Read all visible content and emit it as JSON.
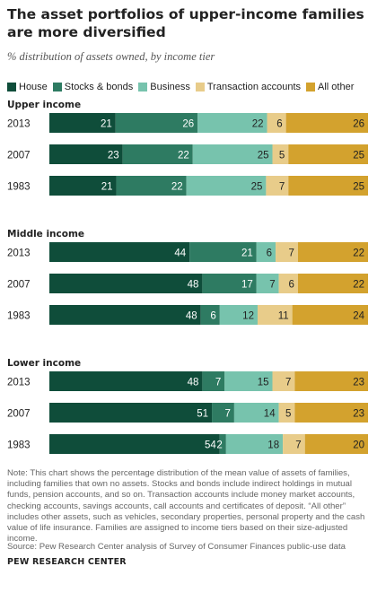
{
  "title": "The asset portfolios of upper-income families are more diversified",
  "subtitle": "% distribution of assets owned, by income tier",
  "chart_data": {
    "type": "bar",
    "orientation": "horizontal",
    "stacked": true,
    "title": "The asset portfolios of upper-income families are more diversified",
    "subtitle": "% distribution of assets owned, by income tier",
    "series": [
      {
        "name": "House",
        "color": "#0f4d3a"
      },
      {
        "name": "Stocks & bonds",
        "color": "#2e7b62"
      },
      {
        "name": "Business",
        "color": "#77c3ad"
      },
      {
        "name": "Transaction accounts",
        "color": "#e8cc8a"
      },
      {
        "name": "All other",
        "color": "#d3a22e"
      }
    ],
    "groups": [
      {
        "name": "Upper income",
        "rows": [
          {
            "year": "2013",
            "values": [
              21,
              26,
              22,
              6,
              26
            ]
          },
          {
            "year": "2007",
            "values": [
              23,
              22,
              25,
              5,
              25
            ]
          },
          {
            "year": "1983",
            "values": [
              21,
              22,
              25,
              7,
              25
            ]
          }
        ]
      },
      {
        "name": "Middle income",
        "rows": [
          {
            "year": "2013",
            "values": [
              44,
              21,
              6,
              7,
              22
            ]
          },
          {
            "year": "2007",
            "values": [
              48,
              17,
              7,
              6,
              22
            ]
          },
          {
            "year": "1983",
            "values": [
              48,
              6,
              12,
              11,
              24
            ]
          }
        ]
      },
      {
        "name": "Lower income",
        "rows": [
          {
            "year": "2013",
            "values": [
              48,
              7,
              15,
              7,
              23
            ]
          },
          {
            "year": "2007",
            "values": [
              51,
              7,
              14,
              5,
              23
            ]
          },
          {
            "year": "1983",
            "values": [
              54,
              2,
              18,
              7,
              20
            ]
          }
        ]
      }
    ],
    "xlim": [
      0,
      100
    ],
    "legend": "top"
  },
  "note": "Note: This chart shows the percentage distribution of the mean value of assets of families, including families that own no assets. Stocks and bonds include indirect holdings in mutual funds, pension accounts, and so on. Transaction accounts include money market accounts, checking accounts, savings accounts, call accounts and certificates of deposit. “All other” includes other assets, such as vehicles, secondary properties, personal property and the cash value of life insurance. Families are assigned to income tiers based on their size-adjusted income.",
  "source": "Source: Pew Research Center analysis of Survey of Consumer Finances public-use data",
  "brand": "PEW RESEARCH CENTER"
}
